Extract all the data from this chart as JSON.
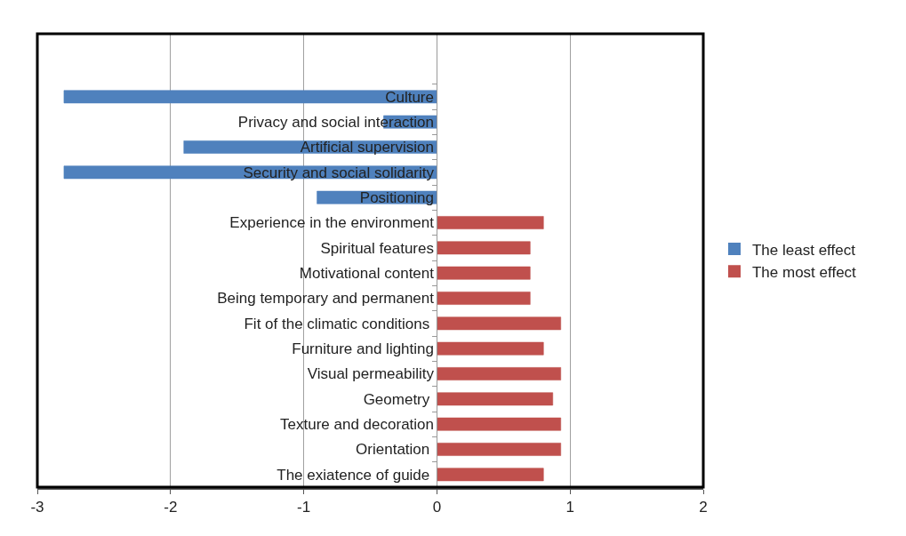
{
  "chart_data": {
    "type": "bar",
    "orientation": "horizontal",
    "stacked": true,
    "categories": [
      null,
      null,
      "Culture",
      "Privacy and social interaction",
      "Artificial supervision",
      "Security and social solidarity",
      "Positioning",
      "Experience in the environment",
      "Spiritual features",
      "Motivational content",
      "Being temporary and permanent",
      "Fit of the climatic conditions ",
      "Furniture and lighting",
      "Visual permeability",
      "Geometry ",
      "Texture and decoration",
      "Orientation ",
      "The exiatence of guide "
    ],
    "series": [
      {
        "name": "The least effect",
        "color": "#4f81bd",
        "values": [
          null,
          null,
          -2.8,
          -0.4,
          -1.9,
          -2.8,
          -0.9,
          null,
          null,
          null,
          null,
          null,
          null,
          null,
          null,
          null,
          null,
          null
        ]
      },
      {
        "name": "The most effect",
        "color": "#c0504d",
        "values": [
          null,
          null,
          null,
          null,
          null,
          null,
          null,
          0.8,
          0.7,
          0.7,
          0.7,
          0.93,
          0.8,
          0.93,
          0.87,
          0.93,
          0.93,
          0.8
        ]
      }
    ],
    "xlim": [
      -3,
      2
    ],
    "xticks": [
      -3,
      -2,
      -1,
      0,
      1,
      2
    ],
    "grid": "x",
    "legend": "right"
  }
}
